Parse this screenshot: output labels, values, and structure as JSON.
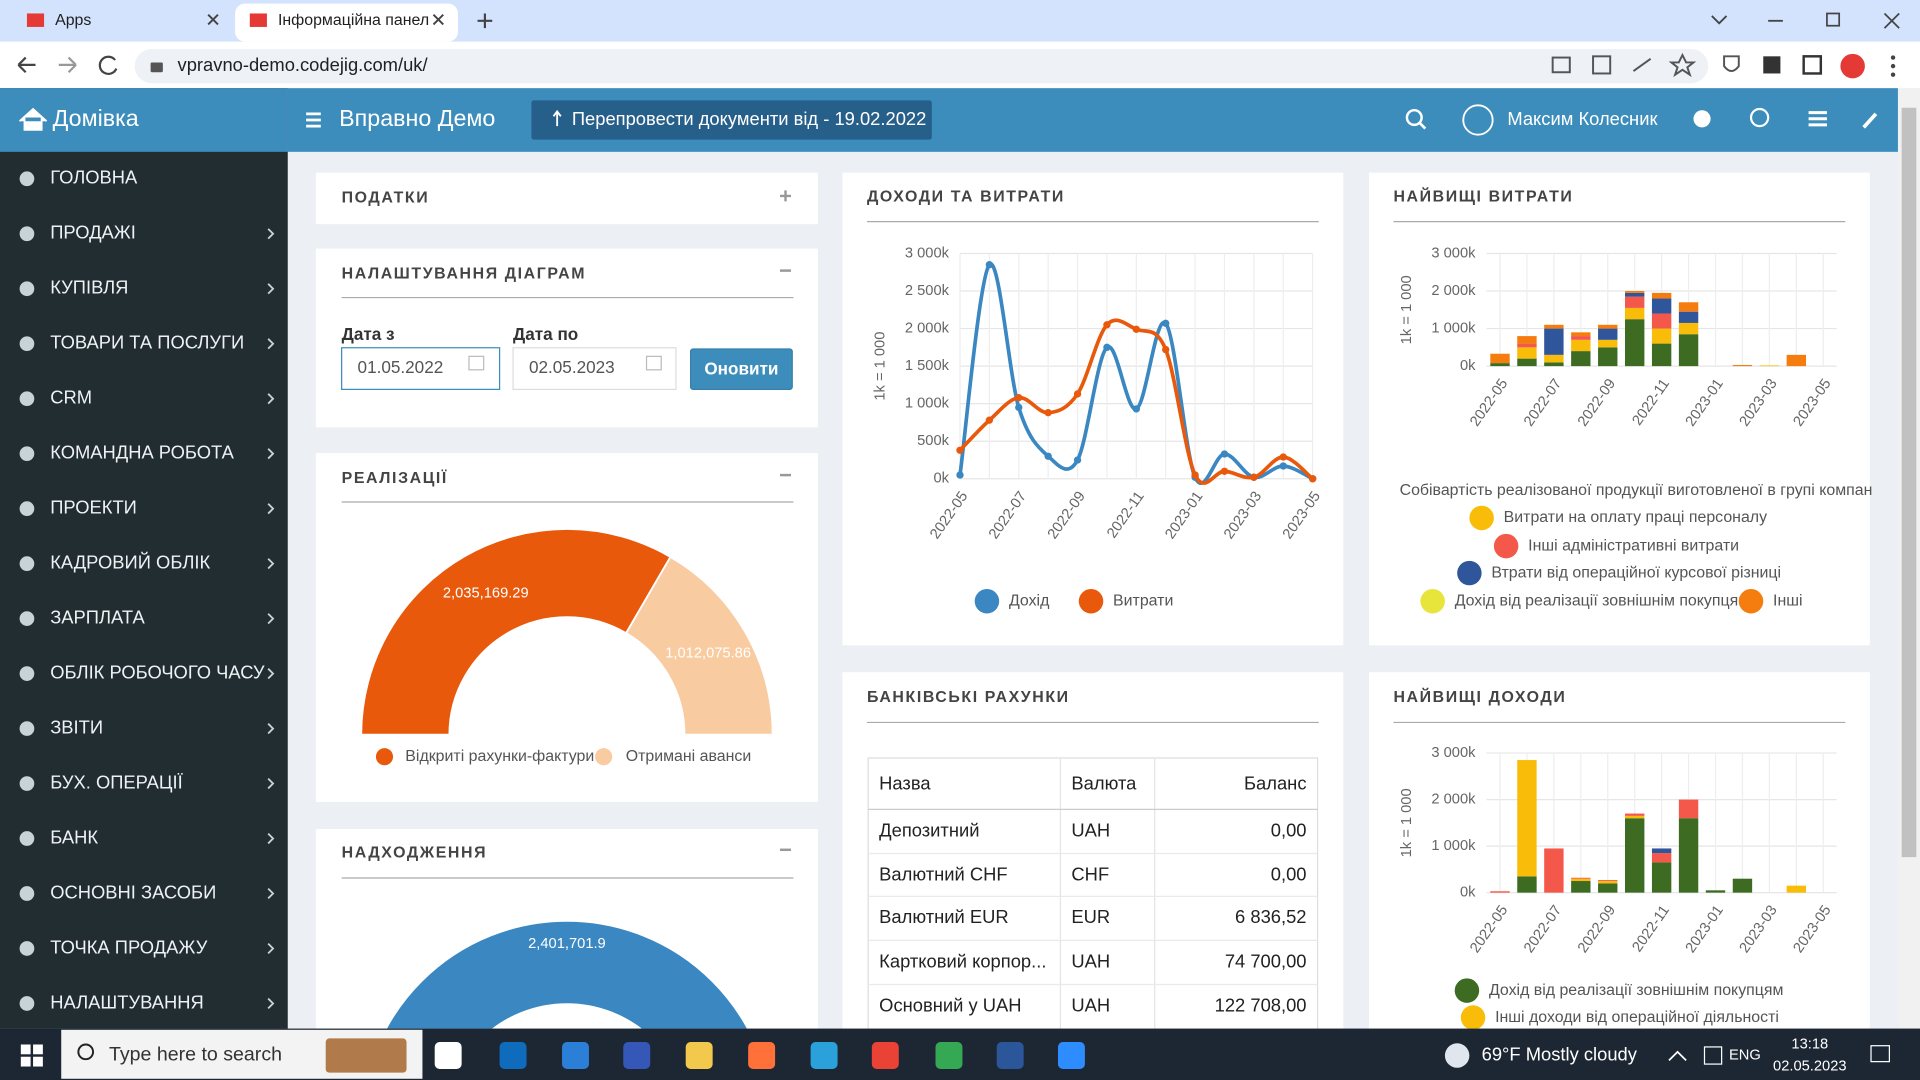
{
  "browser": {
    "tabs": [
      "Apps",
      "Інформаційна панел"
    ],
    "url": "vpravno-demo.codejig.com/uk/"
  },
  "sidebar": {
    "brand": "Домівка",
    "items": [
      "ГОЛОВНА",
      "ПРОДАЖІ",
      "КУПІВЛЯ",
      "ТОВАРИ ТА ПОСЛУГИ",
      "CRM",
      "КОМАНДНА РОБОТА",
      "ПРОЕКТИ",
      "КАДРОВИЙ ОБЛІК",
      "ЗАРПЛАТА",
      "ОБЛІК РОБОЧОГО ЧАСУ",
      "ЗВІТИ",
      "БУХ. ОПЕРАЦІЇ",
      "БАНК",
      "ОСНОВНІ ЗАСОБИ",
      "ТОЧКА ПРОДАЖУ",
      "НАЛАШТУВАННЯ"
    ]
  },
  "topbar": {
    "app": "Вправно Демо",
    "button": "Перепровести документи від - 19.02.2022",
    "user": "Максим Колесник"
  },
  "taxes": {
    "title": "ПОДАТКИ"
  },
  "settings": {
    "title": "НАЛАШТУВАННЯ ДІАГРАМ",
    "from_label": "Дата з",
    "from": "01.05.2022",
    "to_label": "Дата по",
    "to": "02.05.2023",
    "button": "Оновити"
  },
  "sales": {
    "title": "РЕАЛІЗАЦІЇ",
    "chart": {
      "type": "pie",
      "donut": true,
      "half": true,
      "categories": [
        "Відкриті рахунки-фактури",
        "Отримані аванси"
      ],
      "values": [
        2035169.29,
        1012075.86
      ],
      "value_labels": [
        "2,035,169.29",
        "1,012,075.86"
      ],
      "colors": [
        "#e8590c",
        "#f9cba1"
      ]
    }
  },
  "receipts": {
    "title": "НАДХОДЖЕННЯ",
    "chart": {
      "type": "pie",
      "donut": true,
      "half": true,
      "values": [
        2401701.9
      ],
      "value_labels": [
        "2,401,701.9"
      ],
      "colors": [
        "#3a87c2"
      ]
    }
  },
  "income_expense": {
    "title": "ДОХОДИ ТА ВИТРАТИ",
    "chart": {
      "type": "line",
      "y_label": "1k = 1 000",
      "categories": [
        "2022-05",
        null,
        "2022-07",
        null,
        "2022-09",
        null,
        "2022-11",
        null,
        "2023-01",
        null,
        "2023-03",
        null,
        "2023-05"
      ],
      "series": [
        {
          "name": "Дохід",
          "color": "#3a87c2",
          "values": [
            50000,
            2850000,
            950000,
            300000,
            250000,
            1750000,
            930000,
            2070000,
            20000,
            330000,
            20000,
            170000,
            0
          ]
        },
        {
          "name": "Витрати",
          "color": "#e8590c",
          "values": [
            380000,
            780000,
            1080000,
            880000,
            1130000,
            2050000,
            1990000,
            1720000,
            50000,
            100000,
            20000,
            290000,
            0
          ]
        }
      ],
      "ylim": [
        0,
        3000000
      ],
      "yticks": [
        {
          "value": 0,
          "label": "0k"
        },
        {
          "value": 500000,
          "label": "500k"
        },
        {
          "value": 1000000,
          "label": "1 000k"
        },
        {
          "value": 1500000,
          "label": "1 500k"
        },
        {
          "value": 2000000,
          "label": "2 000k"
        },
        {
          "value": 2500000,
          "label": "2 500k"
        },
        {
          "value": 3000000,
          "label": "3 000k"
        }
      ],
      "grid": true
    }
  },
  "top_expenses": {
    "title": "НАЙВИЩІ ВИТРАТИ",
    "chart": {
      "type": "bar",
      "stacked": true,
      "y_label": "1k = 1 000",
      "categories": [
        "2022-05",
        null,
        "2022-07",
        null,
        "2022-09",
        null,
        "2022-11",
        null,
        "2023-01",
        null,
        "2023-03",
        null,
        "2023-05"
      ],
      "series": [
        {
          "name": "Собівартість реалізованої продукції виготовленої в групі компан",
          "color": "#3e6b22",
          "values": [
            80000,
            200000,
            100000,
            400000,
            500000,
            1250000,
            600000,
            850000,
            0,
            0,
            0,
            0,
            0
          ]
        },
        {
          "name": "Витрати на оплату праці персоналу",
          "color": "#f9bd09",
          "values": [
            0,
            300000,
            200000,
            300000,
            200000,
            300000,
            400000,
            300000,
            0,
            0,
            20000,
            0,
            0
          ]
        },
        {
          "name": "Інші адміністративні витрати",
          "color": "#f4584a",
          "values": [
            0,
            100000,
            0,
            100000,
            0,
            300000,
            400000,
            0,
            0,
            0,
            0,
            0,
            0
          ]
        },
        {
          "name": "Втрати від операційної курсової різниці",
          "color": "#2f569b",
          "values": [
            0,
            0,
            700000,
            0,
            300000,
            100000,
            400000,
            300000,
            0,
            0,
            0,
            0,
            0
          ]
        },
        {
          "name": "Дохід від реалізації зовнішнім покупцям",
          "color": "#e7e43c",
          "values": [
            0,
            0,
            0,
            0,
            0,
            0,
            0,
            0,
            0,
            0,
            0,
            0,
            0
          ]
        },
        {
          "name": "Інші",
          "color": "#f57d0f",
          "values": [
            250000,
            200000,
            100000,
            100000,
            100000,
            50000,
            150000,
            250000,
            0,
            30000,
            0,
            300000,
            0
          ]
        }
      ],
      "ylim": [
        0,
        3000000
      ],
      "yticks": [
        {
          "value": 0,
          "label": "0k"
        },
        {
          "value": 1000000,
          "label": "1 000k"
        },
        {
          "value": 2000000,
          "label": "2 000k"
        },
        {
          "value": 3000000,
          "label": "3 000k"
        }
      ],
      "grid": true
    }
  },
  "bank": {
    "title": "БАНКІВСЬКІ РАХУНКИ",
    "table": {
      "header": [
        "Назва",
        "Валюта",
        "Баланс"
      ],
      "rows": [
        [
          "Депозитний",
          "UAH",
          "0,00"
        ],
        [
          "Валютний CHF",
          "CHF",
          "0,00"
        ],
        [
          "Валютний EUR",
          "EUR",
          "6 836,52"
        ],
        [
          "Картковий корпор...",
          "UAH",
          "74 700,00"
        ],
        [
          "Основний у UAH",
          "UAH",
          "122 708,00"
        ]
      ]
    }
  },
  "top_income": {
    "title": "НАЙВИЩІ ДОХОДИ",
    "chart": {
      "type": "bar",
      "stacked": true,
      "y_label": "1k = 1 000",
      "categories": [
        "2022-05",
        null,
        "2022-07",
        null,
        "2022-09",
        null,
        "2022-11",
        null,
        "2023-01",
        null,
        "2023-03",
        null,
        "2023-05"
      ],
      "series": [
        {
          "name": "Дохід від реалізації зовнішнім покупцям",
          "color": "#3e6b22",
          "values": [
            0,
            350000,
            0,
            250000,
            200000,
            1600000,
            650000,
            1600000,
            50000,
            300000,
            0,
            0,
            0
          ]
        },
        {
          "name": "Інші доходи від операційної діяльності",
          "color": "#f9bd09",
          "values": [
            0,
            2500000,
            0,
            50000,
            50000,
            50000,
            0,
            0,
            0,
            0,
            0,
            150000,
            0
          ]
        },
        {
          "color": "#f4584a",
          "values": [
            30000,
            0,
            950000,
            20000,
            20000,
            50000,
            200000,
            400000,
            0,
            0,
            0,
            0,
            0
          ]
        },
        {
          "color": "#2f569b",
          "values": [
            0,
            0,
            0,
            0,
            0,
            0,
            100000,
            0,
            0,
            0,
            0,
            0,
            0
          ]
        }
      ],
      "ylim": [
        0,
        3000000
      ],
      "yticks": [
        {
          "value": 0,
          "label": "0k"
        },
        {
          "value": 1000000,
          "label": "1 000k"
        },
        {
          "value": 2000000,
          "label": "2 000k"
        },
        {
          "value": 3000000,
          "label": "3 000k"
        }
      ],
      "grid": true
    }
  },
  "taskbar": {
    "search": "Type here to search",
    "weather": "69°F Mostly cloudy",
    "lang": "ENG",
    "time": "13:18",
    "date": "02.05.2023"
  }
}
